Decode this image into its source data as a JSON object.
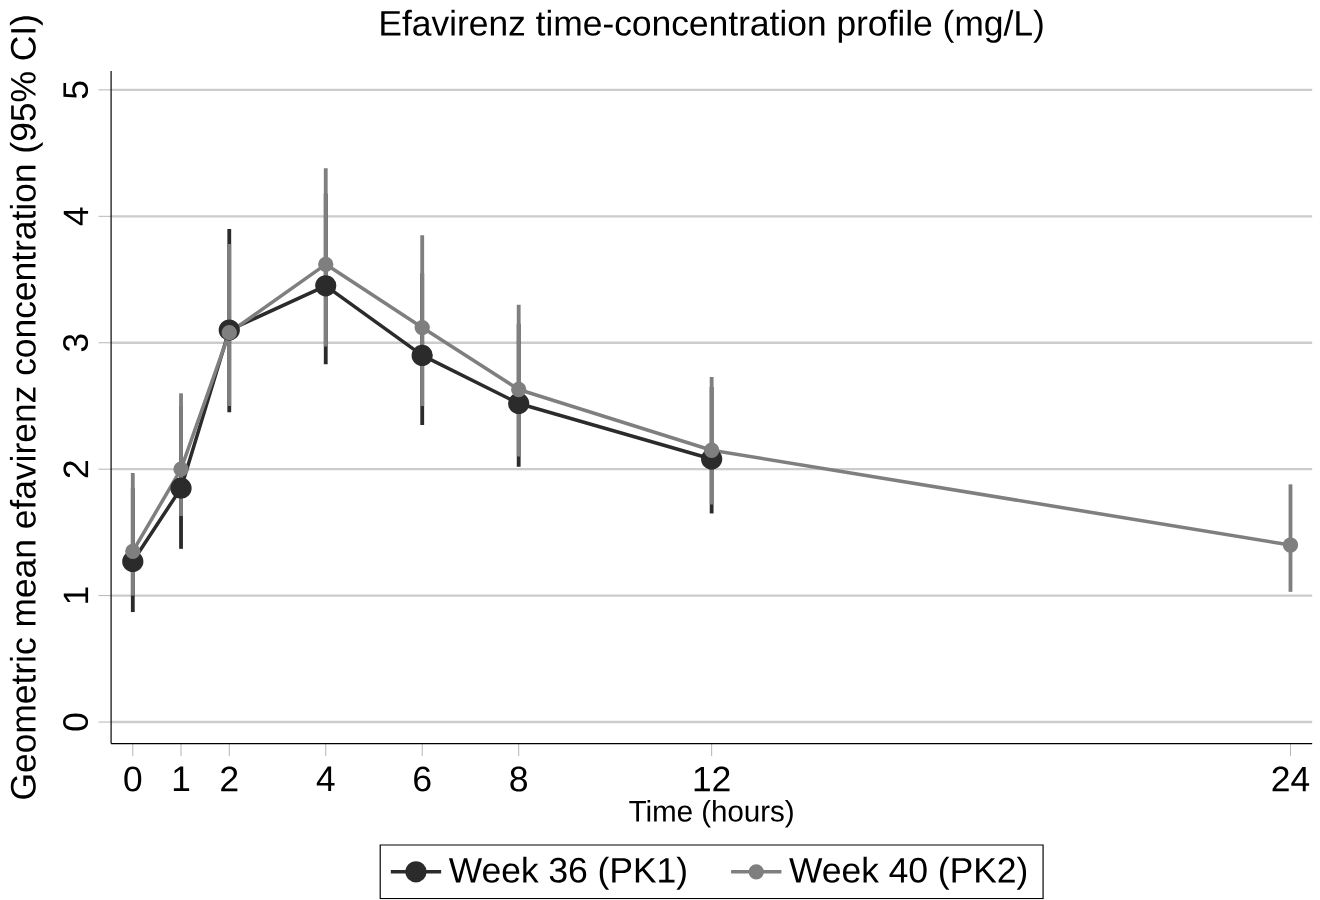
{
  "chart_data": {
    "type": "line",
    "title": "Efavirenz time-concentration profile (mg/L)",
    "xlabel": "Time (hours)",
    "ylabel": "Geometric mean efavirenz concentration (95% CI)",
    "xlim": [
      -0.45,
      24.45
    ],
    "ylim": [
      -0.17,
      5.15
    ],
    "xticks": [
      0,
      1,
      2,
      4,
      6,
      8,
      12,
      24
    ],
    "yticks": [
      0,
      1,
      2,
      3,
      4,
      5
    ],
    "grid": "y",
    "legend": "bottom",
    "marker": "circle",
    "line_style": "solid",
    "series": [
      {
        "name": "Week 36 (PK1)",
        "color": "#2b2b2b",
        "x": [
          0,
          1,
          2,
          4,
          6,
          8,
          12
        ],
        "values": [
          1.27,
          1.85,
          3.1,
          3.45,
          2.9,
          2.52,
          2.08
        ],
        "errors": [
          [
            0.87,
            1.85
          ],
          [
            1.37,
            2.5
          ],
          [
            2.45,
            3.9
          ],
          [
            2.83,
            4.18
          ],
          [
            2.35,
            3.55
          ],
          [
            2.02,
            3.15
          ],
          [
            1.65,
            2.65
          ]
        ]
      },
      {
        "name": "Week 40 (PK2)",
        "color": "#7f7f7f",
        "x": [
          0,
          1,
          2,
          4,
          6,
          8,
          12,
          24
        ],
        "values": [
          1.35,
          2.0,
          3.08,
          3.62,
          3.12,
          2.63,
          2.15,
          1.4
        ],
        "errors": [
          [
            1.0,
            1.97
          ],
          [
            1.63,
            2.6
          ],
          [
            2.5,
            3.78
          ],
          [
            2.97,
            4.38
          ],
          [
            2.5,
            3.85
          ],
          [
            2.1,
            3.3
          ],
          [
            1.72,
            2.73
          ],
          [
            1.03,
            1.88
          ]
        ]
      }
    ]
  }
}
